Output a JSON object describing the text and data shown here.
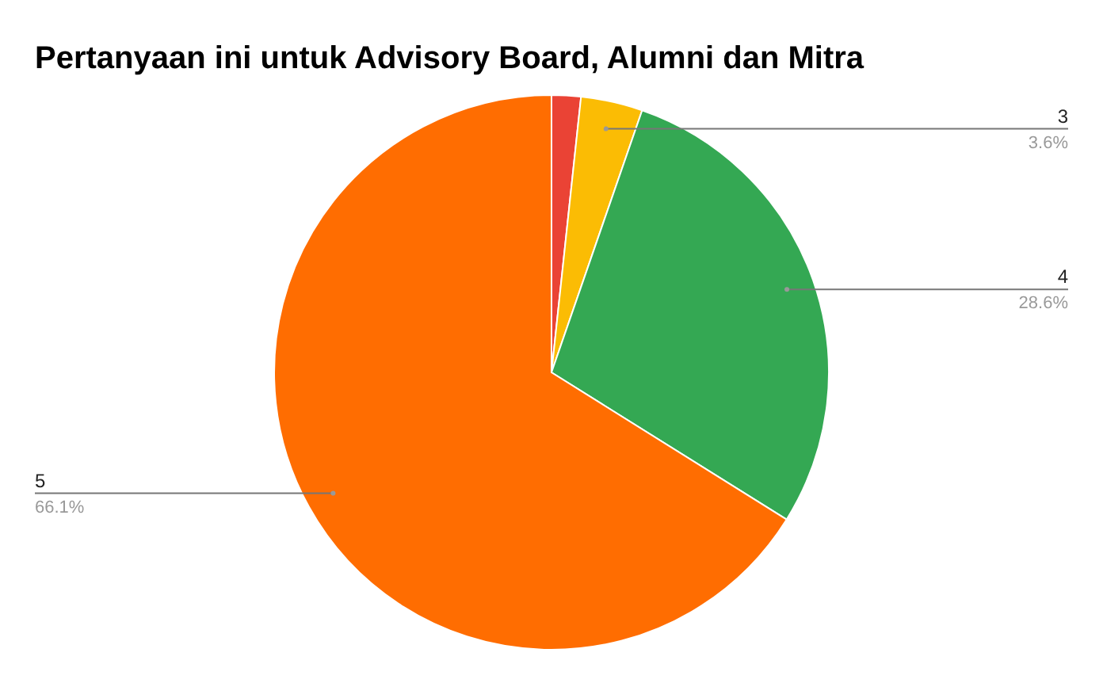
{
  "chart_data": {
    "type": "pie",
    "title": "Pertanyaan ini untuk Advisory Board, Alumni dan Mitra",
    "categories": [
      null,
      "3",
      "4",
      "5"
    ],
    "values": [
      1.7,
      3.6,
      28.6,
      66.1
    ],
    "value_labels": [
      null,
      "3.6%",
      "28.6%",
      "66.1%"
    ],
    "colors": [
      "#ea4335",
      "#fbbc04",
      "#34a853",
      "#ff6d01"
    ],
    "legend": false
  }
}
